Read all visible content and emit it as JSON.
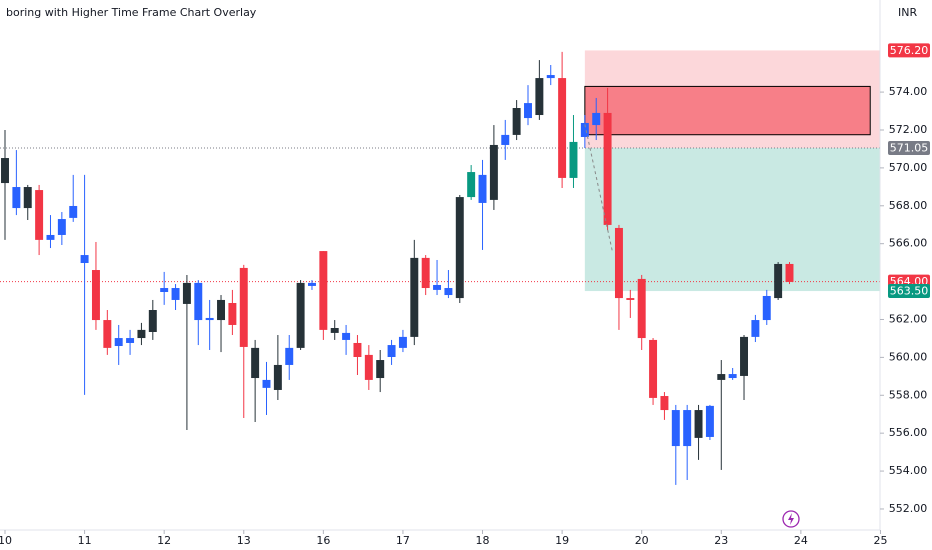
{
  "chart_data": {
    "type": "candlestick",
    "title": "boring with Higher Time Frame Chart Overlay",
    "currency": "INR",
    "xlim": [
      -0.44,
      76.96
    ],
    "ylim": [
      550.89,
      578.86
    ],
    "xticks": [
      {
        "value": 0,
        "label": "10"
      },
      {
        "value": 7,
        "label": "11"
      },
      {
        "value": 14,
        "label": "12"
      },
      {
        "value": 21,
        "label": "13"
      },
      {
        "value": 28,
        "label": "16"
      },
      {
        "value": 35,
        "label": "17"
      },
      {
        "value": 42,
        "label": "18"
      },
      {
        "value": 49,
        "label": "19"
      },
      {
        "value": 56,
        "label": "20"
      },
      {
        "value": 63,
        "label": "23"
      },
      {
        "value": 70,
        "label": "24"
      },
      {
        "value": 77,
        "label": "25"
      }
    ],
    "yticks": [
      {
        "value": 552,
        "label": "552.00"
      },
      {
        "value": 554,
        "label": "554.00"
      },
      {
        "value": 556,
        "label": "556.00"
      },
      {
        "value": 558,
        "label": "558.00"
      },
      {
        "value": 560,
        "label": "560.00"
      },
      {
        "value": 562,
        "label": "562.00"
      },
      {
        "value": 566,
        "label": "566.00"
      },
      {
        "value": 568,
        "label": "568.00"
      },
      {
        "value": 570,
        "label": "570.00"
      },
      {
        "value": 572,
        "label": "572.00"
      },
      {
        "value": 574,
        "label": "574.00"
      }
    ],
    "x": [
      0,
      1,
      2,
      3,
      4,
      5,
      6,
      7,
      8,
      9,
      10,
      11,
      12,
      13,
      14,
      15,
      16,
      17,
      18,
      19,
      20,
      21,
      22,
      23,
      24,
      25,
      26,
      27,
      28,
      29,
      30,
      31,
      32,
      33,
      34,
      35,
      36,
      37,
      38,
      39,
      40,
      41,
      42,
      43,
      44,
      45,
      46,
      47,
      48,
      49,
      50,
      51,
      52,
      53,
      54,
      55,
      56,
      57,
      58,
      59,
      60,
      61,
      62,
      63,
      64,
      65,
      66,
      67,
      68,
      69
    ],
    "open": [
      569.2,
      567.88,
      567.88,
      568.83,
      566.2,
      566.46,
      567.36,
      564.98,
      564.61,
      561.97,
      560.6,
      560.76,
      561.02,
      561.34,
      563.45,
      563.03,
      562.82,
      561.97,
      561.97,
      561.97,
      562.87,
      564.72,
      558.91,
      558.39,
      558.28,
      559.6,
      560.5,
      563.77,
      565.61,
      561.29,
      560.92,
      560.76,
      560.13,
      558.91,
      560.02,
      560.5,
      561.08,
      565.25,
      563.56,
      563.29,
      563.13,
      568.46,
      568.15,
      568.31,
      571.21,
      571.74,
      572.63,
      572.79,
      574.74,
      574.74,
      569.47,
      571.63,
      572.26,
      572.9,
      566.83,
      563.13,
      564.14,
      560.92,
      557.96,
      555.32,
      555.32,
      555.75,
      555.8,
      558.81,
      558.91,
      559.02,
      561.08,
      561.97,
      563.13,
      564.93
    ],
    "high": [
      572.0,
      570.94,
      569.1,
      569.1,
      567.51,
      567.67,
      569.63,
      569.63,
      566.09,
      562.5,
      561.71,
      561.45,
      561.82,
      563.03,
      564.51,
      563.87,
      564.35,
      564.08,
      563.03,
      563.29,
      563.56,
      564.88,
      560.92,
      559.76,
      561.18,
      561.18,
      564.08,
      564.08,
      565.61,
      561.97,
      561.71,
      561.18,
      560.65,
      560.39,
      560.92,
      561.45,
      566.2,
      565.4,
      565.14,
      564.61,
      568.57,
      570.15,
      570.42,
      572.26,
      572.53,
      573.58,
      574.37,
      575.69,
      575.43,
      576.12,
      572.79,
      572.79,
      573.69,
      574.22,
      566.99,
      563.56,
      564.35,
      561.02,
      558.17,
      557.49,
      557.49,
      557.49,
      557.49,
      559.86,
      559.44,
      561.18,
      562.24,
      563.56,
      565.03,
      565.03
    ],
    "low": [
      566.2,
      567.51,
      567.25,
      565.4,
      565.77,
      565.93,
      567.15,
      558.02,
      561.45,
      560.13,
      559.6,
      560.13,
      560.65,
      560.92,
      562.77,
      562.5,
      556.17,
      560.65,
      560.39,
      560.28,
      561.18,
      556.8,
      556.59,
      556.96,
      557.75,
      558.81,
      560.39,
      563.56,
      560.92,
      560.92,
      560.13,
      559.07,
      558.28,
      558.17,
      559.6,
      560.28,
      560.65,
      563.29,
      563.29,
      563.13,
      562.87,
      568.31,
      565.67,
      567.78,
      570.42,
      571.47,
      572.26,
      572.53,
      574.37,
      568.94,
      568.94,
      571.05,
      571.47,
      566.72,
      561.45,
      562.08,
      560.39,
      557.49,
      556.7,
      553.27,
      553.53,
      554.59,
      555.64,
      554.06,
      558.81,
      557.75,
      560.81,
      561.71,
      563.03,
      563.87
    ],
    "close": [
      570.52,
      568.99,
      568.99,
      566.2,
      566.46,
      567.3,
      567.99,
      565.4,
      561.97,
      560.5,
      561.02,
      561.02,
      561.45,
      562.5,
      563.66,
      563.66,
      563.93,
      563.93,
      562.08,
      563.03,
      561.71,
      560.55,
      560.5,
      558.81,
      559.6,
      560.5,
      563.93,
      563.93,
      561.45,
      561.55,
      561.29,
      560.02,
      558.81,
      559.86,
      560.65,
      561.08,
      565.25,
      563.66,
      563.82,
      563.66,
      568.46,
      569.78,
      569.63,
      571.21,
      571.74,
      573.16,
      573.42,
      574.74,
      574.9,
      569.47,
      571.37,
      572.37,
      572.9,
      566.99,
      563.13,
      563.03,
      561.02,
      557.86,
      557.22,
      557.22,
      557.22,
      557.22,
      557.44,
      559.12,
      559.12,
      561.08,
      561.97,
      563.24,
      564.93,
      563.98
    ],
    "colors": [
      "#263238",
      "#2962ff",
      "#263238",
      "#f23645",
      "#2962ff",
      "#2962ff",
      "#2962ff",
      "#2962ff",
      "#f23645",
      "#f23645",
      "#2962ff",
      "#2962ff",
      "#263238",
      "#263238",
      "#2962ff",
      "#2962ff",
      "#263238",
      "#2962ff",
      "#2962ff",
      "#263238",
      "#f23645",
      "#f23645",
      "#263238",
      "#2962ff",
      "#263238",
      "#2962ff",
      "#263238",
      "#2962ff",
      "#f23645",
      "#263238",
      "#2962ff",
      "#f23645",
      "#f23645",
      "#263238",
      "#2962ff",
      "#2962ff",
      "#263238",
      "#f23645",
      "#2962ff",
      "#2962ff",
      "#263238",
      "#089981",
      "#2962ff",
      "#263238",
      "#2962ff",
      "#263238",
      "#2962ff",
      "#263238",
      "#2962ff",
      "#f23645",
      "#089981",
      "#2962ff",
      "#2962ff",
      "#f23645",
      "#f23645",
      "#f23645",
      "#f23645",
      "#f23645",
      "#f23645",
      "#2962ff",
      "#2962ff",
      "#263238",
      "#2962ff",
      "#263238",
      "#2962ff",
      "#263238",
      "#2962ff",
      "#2962ff",
      "#263238",
      "#f23645"
    ],
    "zones": [
      {
        "x": [
          51,
          77
        ],
        "y": [
          576.2,
          571.05
        ],
        "color": "rgba(242,54,69,0.2)"
      },
      {
        "x": [
          51,
          77
        ],
        "y": [
          571.05,
          563.5
        ],
        "color": "rgba(8,153,129,0.22)"
      },
      {
        "x": [
          51,
          76.1
        ],
        "y": [
          574.3,
          571.75
        ],
        "color": "rgba(242,54,69,0.55)",
        "border": "#000000"
      }
    ],
    "dashed_line": {
      "x": [
        51,
        53.4
      ],
      "y": [
        572.3,
        565.65
      ],
      "color": "#888888"
    },
    "price_labels": [
      {
        "value": 576.2,
        "label": "576.20",
        "color": "#f23645"
      },
      {
        "value": 571.05,
        "label": "571.05",
        "color": "#787b86",
        "line": true
      },
      {
        "value": 564,
        "label": "564.00",
        "color": "#f23645",
        "line": true
      },
      {
        "value": 563.5,
        "label": "563.50",
        "color": "#089981"
      }
    ]
  }
}
